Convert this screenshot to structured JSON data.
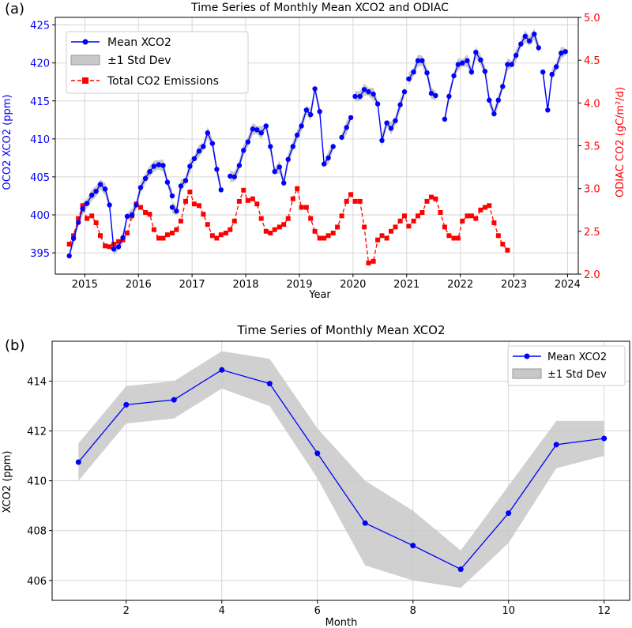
{
  "colors": {
    "blue": "#0000ff",
    "red": "#ff0000",
    "band": "#c8c8c8",
    "grid": "#d6d6d6",
    "axis": "#000000"
  },
  "chart_data": [
    {
      "panel_label": "(a)",
      "type": "line",
      "title": "Time Series of Monthly Mean XCO2 and ODIAC",
      "xlabel": "Year",
      "ylabel_left": "OCO2 XCO2 (ppm)",
      "ylabel_right": "ODIAC CO2 (gC/m²/d)",
      "xlim": [
        2014.45,
        2024.2
      ],
      "ylim_left": [
        392.2,
        426
      ],
      "ylim_right": [
        2.0,
        5.0
      ],
      "xticks": [
        2015,
        2016,
        2017,
        2018,
        2019,
        2020,
        2021,
        2022,
        2023,
        2024
      ],
      "yticks_left": [
        395,
        400,
        405,
        410,
        415,
        420,
        425
      ],
      "yticks_right": [
        2.0,
        2.5,
        3.0,
        3.5,
        4.0,
        4.5,
        5.0
      ],
      "yticks_right_labels": [
        "2.0",
        "2.5",
        "3.0",
        "3.5",
        "4.0",
        "4.5",
        "5.0"
      ],
      "legend": {
        "placement": "top-left",
        "entries": [
          "Mean XCO2",
          "±1 Std Dev",
          "Total CO2 Emissions"
        ]
      },
      "grid": true,
      "xco2_segments": [
        {
          "x": [
            2014.71,
            2014.79,
            2014.88,
            2014.96,
            2015.04,
            2015.13,
            2015.21,
            2015.29,
            2015.38,
            2015.46,
            2015.54,
            2015.63,
            2015.71,
            2015.79,
            2015.88,
            2015.96,
            2016.04,
            2016.13,
            2016.21,
            2016.29,
            2016.38,
            2016.46,
            2016.54,
            2016.63
          ],
          "y": [
            394.6,
            396.9,
            399.0,
            400.8,
            401.5,
            402.6,
            403.1,
            404.0,
            403.4,
            401.3,
            395.5,
            395.8,
            397.0,
            399.8,
            400.0,
            401.3,
            403.6,
            404.8,
            405.7,
            406.4,
            406.6,
            406.5,
            404.3,
            402.5
          ]
        },
        {
          "x": [
            2016.63,
            2016.71,
            2016.79,
            2016.88,
            2016.96,
            2017.04,
            2017.13,
            2017.21,
            2017.29,
            2017.38,
            2017.46,
            2017.54
          ],
          "y": [
            401.0,
            400.5,
            403.8,
            404.5,
            406.4,
            407.4,
            408.4,
            409.0,
            410.8,
            409.4,
            406.0,
            403.3
          ]
        },
        {
          "x": [
            2017.71,
            2017.79,
            2017.88,
            2017.96,
            2018.04,
            2018.13,
            2018.21,
            2018.29,
            2018.38,
            2018.46,
            2018.54,
            2018.63,
            2018.71,
            2018.79,
            2018.88,
            2018.96,
            2019.04,
            2019.13,
            2019.21,
            2019.29,
            2019.38,
            2019.46,
            2019.54,
            2019.63
          ],
          "y": [
            405.1,
            405.0,
            406.5,
            408.5,
            409.6,
            411.3,
            411.2,
            410.8,
            411.7,
            409.0,
            405.7,
            406.3,
            404.2,
            407.3,
            409.0,
            410.5,
            411.7,
            413.8,
            413.2,
            416.6,
            413.6,
            406.7,
            407.5,
            409.0
          ]
        },
        {
          "x": [
            2019.79,
            2019.88,
            2019.96
          ],
          "y": [
            410.2,
            411.5,
            412.8
          ]
        },
        {
          "x": [
            2020.04,
            2020.13,
            2020.21,
            2020.29,
            2020.38,
            2020.46,
            2020.54,
            2020.63,
            2020.71,
            2020.79,
            2020.88,
            2020.96
          ],
          "y": [
            415.6,
            415.6,
            416.5,
            416.2,
            415.9,
            414.6,
            409.8,
            412.1,
            411.4,
            412.4,
            414.5,
            416.2
          ]
        },
        {
          "x": [
            2021.04,
            2021.13,
            2021.21,
            2021.29,
            2021.38,
            2021.46,
            2021.54
          ],
          "y": [
            417.9,
            418.8,
            420.3,
            420.3,
            418.7,
            416.0,
            415.7
          ]
        },
        {
          "x": [
            2021.71,
            2021.79,
            2021.88,
            2021.96,
            2022.04,
            2022.13,
            2022.21,
            2022.29,
            2022.38,
            2022.46,
            2022.54,
            2022.63,
            2022.71,
            2022.79,
            2022.88,
            2022.96,
            2023.04,
            2023.13,
            2023.21,
            2023.29,
            2023.38,
            2023.46
          ],
          "y": [
            412.6,
            415.6,
            418.3,
            419.8,
            420.0,
            420.3,
            418.8,
            421.4,
            420.4,
            418.9,
            415.1,
            413.3,
            415.1,
            416.9,
            419.8,
            419.8,
            421.0,
            422.5,
            423.5,
            422.9,
            423.8,
            422.0
          ]
        },
        {
          "x": [
            2023.54,
            2023.63,
            2023.71,
            2023.79,
            2023.88,
            2023.96
          ],
          "y": [
            418.8,
            413.8,
            418.5,
            419.5,
            421.3,
            421.5
          ]
        }
      ],
      "emissions": {
        "x": [
          2014.71,
          2014.79,
          2014.88,
          2014.96,
          2015.04,
          2015.13,
          2015.21,
          2015.29,
          2015.38,
          2015.46,
          2015.54,
          2015.63,
          2015.71,
          2015.79,
          2015.88,
          2015.96,
          2016.04,
          2016.13,
          2016.21,
          2016.29,
          2016.38,
          2016.46,
          2016.54,
          2016.63,
          2016.71,
          2016.79,
          2016.88,
          2016.96,
          2017.04,
          2017.13,
          2017.21,
          2017.29,
          2017.38,
          2017.46,
          2017.54,
          2017.63,
          2017.71,
          2017.79,
          2017.88,
          2017.96,
          2018.04,
          2018.13,
          2018.21,
          2018.29,
          2018.38,
          2018.46,
          2018.54,
          2018.63,
          2018.71,
          2018.79,
          2018.88,
          2018.96,
          2019.04,
          2019.13,
          2019.21,
          2019.29,
          2019.38,
          2019.46,
          2019.54,
          2019.63,
          2019.71,
          2019.79,
          2019.88,
          2019.96,
          2020.04,
          2020.13,
          2020.21,
          2020.29,
          2020.38,
          2020.46,
          2020.54,
          2020.63,
          2020.71,
          2020.79,
          2020.88,
          2020.96,
          2021.04,
          2021.13,
          2021.21,
          2021.29,
          2021.38,
          2021.46,
          2021.54,
          2021.63,
          2021.71,
          2021.79,
          2021.88,
          2021.96,
          2022.04,
          2022.13,
          2022.21,
          2022.29,
          2022.38,
          2022.46,
          2022.54,
          2022.63,
          2022.71,
          2022.79,
          2022.88
        ],
        "y": [
          2.35,
          2.45,
          2.65,
          2.8,
          2.65,
          2.68,
          2.6,
          2.45,
          2.33,
          2.32,
          2.35,
          2.38,
          2.4,
          2.48,
          2.68,
          2.82,
          2.78,
          2.72,
          2.7,
          2.52,
          2.42,
          2.42,
          2.46,
          2.48,
          2.52,
          2.62,
          2.85,
          2.96,
          2.82,
          2.8,
          2.7,
          2.58,
          2.45,
          2.42,
          2.46,
          2.48,
          2.52,
          2.62,
          2.85,
          2.98,
          2.86,
          2.88,
          2.82,
          2.65,
          2.5,
          2.48,
          2.52,
          2.55,
          2.58,
          2.65,
          2.88,
          3.0,
          2.78,
          2.78,
          2.65,
          2.5,
          2.42,
          2.42,
          2.45,
          2.48,
          2.55,
          2.68,
          2.85,
          2.93,
          2.85,
          2.85,
          2.55,
          2.13,
          2.15,
          2.4,
          2.45,
          2.42,
          2.5,
          2.55,
          2.62,
          2.68,
          2.56,
          2.62,
          2.68,
          2.72,
          2.85,
          2.9,
          2.88,
          2.72,
          2.55,
          2.45,
          2.42,
          2.42,
          2.62,
          2.68,
          2.68,
          2.65,
          2.75,
          2.78,
          2.8,
          2.6,
          2.45,
          2.35,
          2.28
        ]
      }
    },
    {
      "panel_label": "(b)",
      "type": "line",
      "title": "Time Series of Monthly Mean XCO2",
      "xlabel": "Month",
      "ylabel": "XCO2 (ppm)",
      "xlim": [
        0.45,
        12.55
      ],
      "ylim": [
        405.2,
        415.6
      ],
      "xticks": [
        2,
        4,
        6,
        8,
        10,
        12
      ],
      "yticks": [
        406,
        408,
        410,
        412,
        414
      ],
      "legend": {
        "placement": "top-right",
        "entries": [
          "Mean XCO2",
          "±1 Std Dev"
        ]
      },
      "grid": true,
      "x": [
        1,
        2,
        3,
        4,
        5,
        6,
        7,
        8,
        9,
        10,
        11,
        12
      ],
      "values": [
        410.75,
        413.05,
        413.25,
        414.45,
        413.9,
        411.1,
        408.3,
        407.4,
        406.45,
        408.7,
        411.45,
        411.7
      ],
      "std_upper": [
        411.5,
        413.8,
        414.0,
        415.2,
        414.9,
        412.1,
        410.0,
        408.8,
        407.2,
        409.8,
        412.4,
        412.4
      ],
      "std_lower": [
        410.0,
        412.3,
        412.5,
        413.7,
        413.0,
        410.1,
        406.6,
        406.0,
        405.7,
        407.5,
        410.5,
        411.0
      ]
    }
  ]
}
